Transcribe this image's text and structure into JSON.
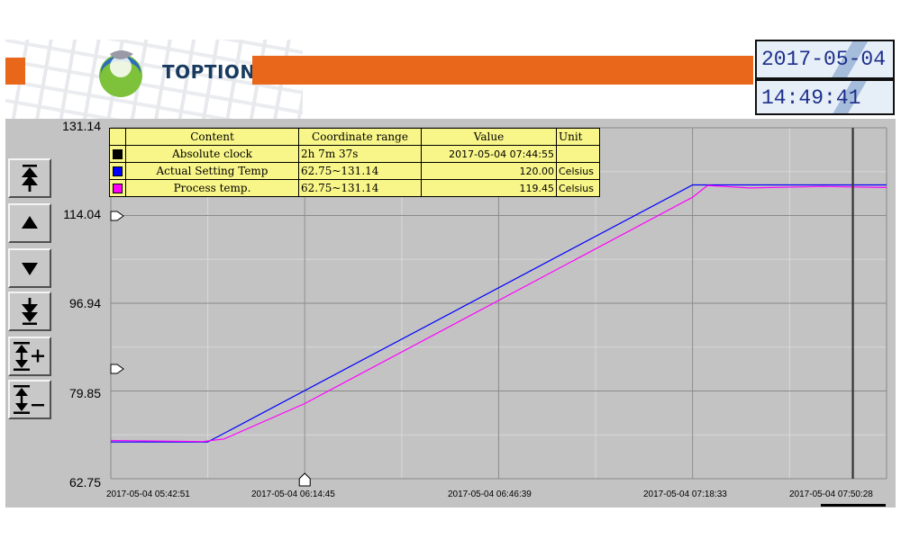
{
  "header": {
    "brand": "TOPTION",
    "date": "2017-05-04",
    "time": "14:49:41"
  },
  "toolbar": {
    "buttons": [
      {
        "name": "scroll-top-button",
        "icon": "double-up-arrow-icon"
      },
      {
        "name": "scroll-up-button",
        "icon": "up-arrow-icon"
      },
      {
        "name": "scroll-down-button",
        "icon": "down-arrow-icon"
      },
      {
        "name": "scroll-bottom-button",
        "icon": "double-down-arrow-icon"
      },
      {
        "name": "zoom-in-button",
        "icon": "expand-range-plus-icon"
      },
      {
        "name": "zoom-out-button",
        "icon": "shrink-range-minus-icon"
      }
    ]
  },
  "legend": {
    "headers": {
      "content": "Content",
      "range": "Coordinate range",
      "value": "Value",
      "unit": "Unit"
    },
    "rows": [
      {
        "color": "#000000",
        "content": "Absolute clock",
        "range": "2h 7m 37s",
        "value": "2017-05-04 07:44:55",
        "unit": ""
      },
      {
        "color": "#0000ff",
        "content": "Actual Setting Temp",
        "range": "62.75~131.14",
        "value": "120.00",
        "unit": "Celsius"
      },
      {
        "color": "#ff00ff",
        "content": "Process temp.",
        "range": "62.75~131.14",
        "value": "119.45",
        "unit": "Celsius"
      }
    ]
  },
  "y_labels": [
    "131.14",
    "114.04",
    "96.94",
    "79.85",
    "62.75"
  ],
  "x_labels": [
    "2017-05-04 05:42:51",
    "2017-05-04 06:14:45",
    "2017-05-04 06:46:39",
    "2017-05-04 07:18:33",
    "2017-05-04 07:50:28"
  ],
  "colors": {
    "background": "#c3c3c3",
    "accent_orange": "#e8671b",
    "setting_series": "#0000ff",
    "process_series": "#ff00ff",
    "legend_bg": "#f8f688"
  },
  "chart_data": {
    "type": "line",
    "ylim": [
      62.75,
      131.14
    ],
    "x_range": [
      "2017-05-04 05:42:51",
      "2017-05-04 07:50:28"
    ],
    "grid": true,
    "cursor_time": "2017-05-04 07:44:55",
    "series": [
      {
        "name": "Actual Setting Temp",
        "color": "#0000ff",
        "points": [
          {
            "t": "2017-05-04 05:42:51",
            "v": 69.9
          },
          {
            "t": "2017-05-04 05:58:48",
            "v": 69.9
          },
          {
            "t": "2017-05-04 07:18:33",
            "v": 120.0
          },
          {
            "t": "2017-05-04 07:50:28",
            "v": 120.0
          }
        ]
      },
      {
        "name": "Process temp.",
        "color": "#ff00ff",
        "points": [
          {
            "t": "2017-05-04 05:42:51",
            "v": 70.2
          },
          {
            "t": "2017-05-04 05:58:00",
            "v": 70.0
          },
          {
            "t": "2017-05-04 06:01:30",
            "v": 70.5
          },
          {
            "t": "2017-05-04 06:14:45",
            "v": 77.4
          },
          {
            "t": "2017-05-04 07:18:33",
            "v": 117.6
          },
          {
            "t": "2017-05-04 07:21:00",
            "v": 119.9
          },
          {
            "t": "2017-05-04 07:28:00",
            "v": 119.4
          },
          {
            "t": "2017-05-04 07:40:00",
            "v": 119.7
          },
          {
            "t": "2017-05-04 07:50:28",
            "v": 119.5
          }
        ]
      }
    ]
  }
}
